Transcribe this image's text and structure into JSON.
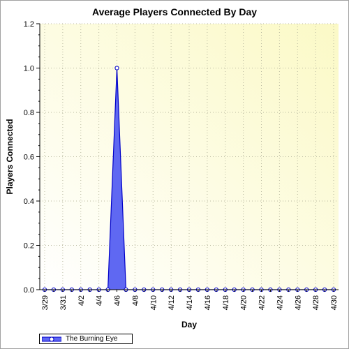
{
  "colors": {
    "plot_bg_light": "#ffffff",
    "plot_bg_tint": "#fbf9c6",
    "series_fill": "#5f68f2",
    "series_line": "#0000c8",
    "marker_fill": "#ffffff",
    "grid": "#b9b9a0"
  },
  "chart_data": {
    "type": "area",
    "title": "Average Players Connected By Day",
    "xlabel": "Day",
    "ylabel": "Players Connected",
    "ylim": [
      0,
      1.2
    ],
    "y_ticks": [
      "0.0",
      "0.2",
      "0.4",
      "0.6",
      "0.8",
      "1.0",
      "1.2"
    ],
    "x_tick_labels": [
      "3/29",
      "3/31",
      "4/2",
      "4/4",
      "4/6",
      "4/8",
      "4/10",
      "4/12",
      "4/14",
      "4/16",
      "4/18",
      "4/20",
      "4/22",
      "4/24",
      "4/26",
      "4/28",
      "4/30"
    ],
    "grid": true,
    "legend_position": "bottom-left",
    "categories": [
      "3/29",
      "3/30",
      "3/31",
      "4/1",
      "4/2",
      "4/3",
      "4/4",
      "4/5",
      "4/6",
      "4/7",
      "4/8",
      "4/9",
      "4/10",
      "4/11",
      "4/12",
      "4/13",
      "4/14",
      "4/15",
      "4/16",
      "4/17",
      "4/18",
      "4/19",
      "4/20",
      "4/21",
      "4/22",
      "4/23",
      "4/24",
      "4/25",
      "4/26",
      "4/27",
      "4/28",
      "4/29",
      "4/30"
    ],
    "series": [
      {
        "name": "The Burning Eye",
        "values": [
          0,
          0,
          0,
          0,
          0,
          0,
          0,
          0,
          1.0,
          0,
          0,
          0,
          0,
          0,
          0,
          0,
          0,
          0,
          0,
          0,
          0,
          0,
          0,
          0,
          0,
          0,
          0,
          0,
          0,
          0,
          0,
          0,
          0
        ]
      }
    ]
  }
}
